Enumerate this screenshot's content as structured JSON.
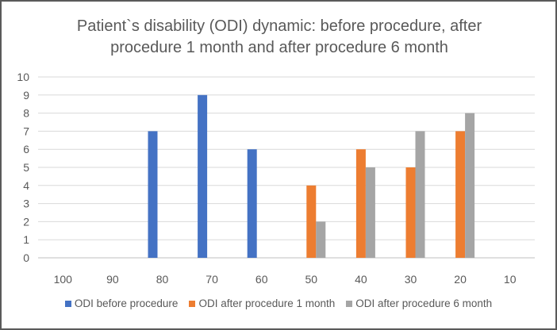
{
  "chart_data": {
    "type": "bar",
    "title": "Patient`s disability (ODI) dynamic: before procedure, after procedure 1 month and after procedure 6 month",
    "title_lines": [
      "Patient`s disability (ODI) dynamic: before procedure, after",
      "procedure 1 month and after procedure 6 month"
    ],
    "categories": [
      "100",
      "90",
      "80",
      "70",
      "60",
      "50",
      "40",
      "30",
      "20",
      "10"
    ],
    "series": [
      {
        "name": "ODI before procedure",
        "color": "#4472C4",
        "values": [
          0,
          0,
          7,
          9,
          6,
          0,
          0,
          0,
          0,
          0
        ]
      },
      {
        "name": "ODI after procedure 1 month",
        "color": "#ED7D31",
        "values": [
          0,
          0,
          0,
          0,
          0,
          4,
          6,
          5,
          7,
          0
        ]
      },
      {
        "name": "ODI after procedure 6 month",
        "color": "#A5A5A5",
        "values": [
          0,
          0,
          0,
          0,
          0,
          2,
          5,
          7,
          8,
          0
        ]
      }
    ],
    "ylim": [
      0,
      10
    ],
    "yticks": [
      0,
      1,
      2,
      3,
      4,
      5,
      6,
      7,
      8,
      9,
      10
    ],
    "grid": true,
    "legend_position": "bottom"
  }
}
